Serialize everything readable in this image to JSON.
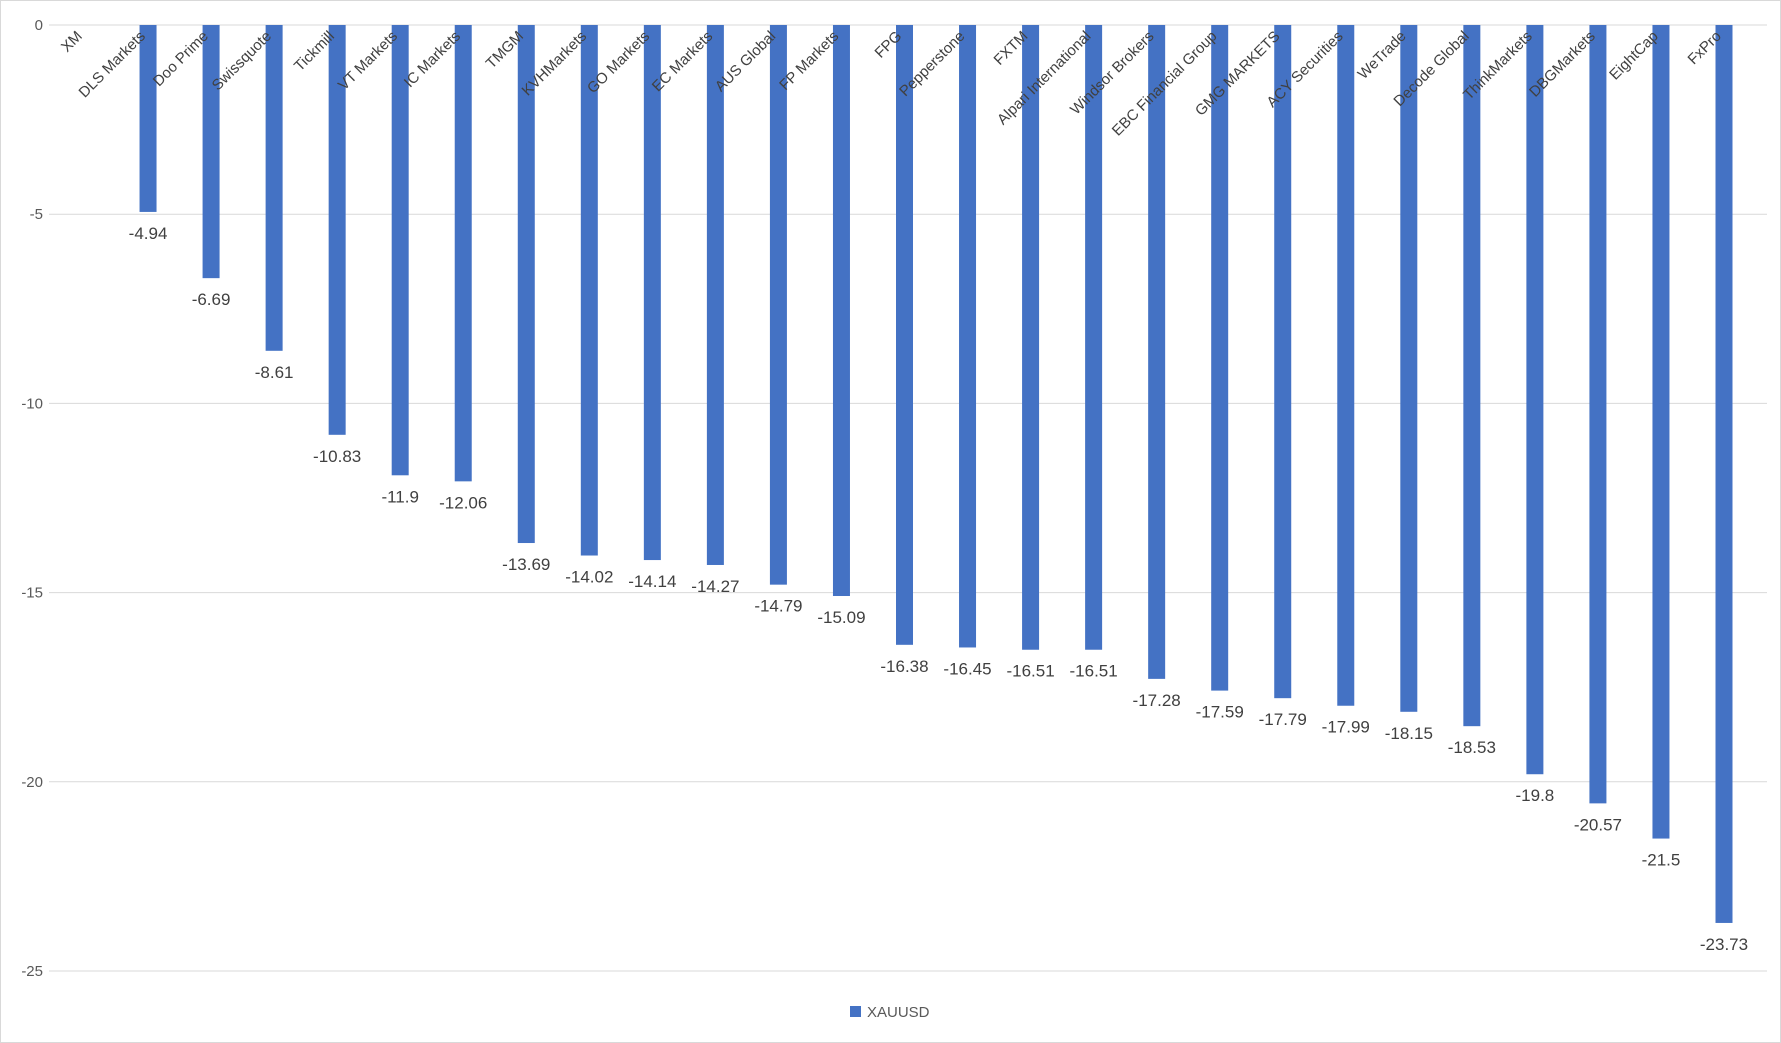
{
  "chart_data": {
    "type": "bar",
    "categories": [
      "XM",
      "DLS Markets",
      "Doo Prime",
      "Swissquote",
      "Tickmill",
      "VT Markets",
      "IC Markets",
      "TMGM",
      "KVHMarkets",
      "GO Markets",
      "EC Markets",
      "AUS Global",
      "FP Markets",
      "FPG",
      "Pepperstone",
      "FXTM",
      "Alpari International",
      "Windsor Brokers",
      "EBC Financial Group",
      "GMG MARKETS",
      "ACY Securities",
      "WeTrade",
      "Decode Global",
      "ThinkMarkets",
      "DBGMarkets",
      "EightCap",
      "FxPro"
    ],
    "series": [
      {
        "name": "XAUUSD",
        "color": "#4472c4",
        "values": [
          0,
          -4.94,
          -6.69,
          -8.61,
          -10.83,
          -11.9,
          -12.06,
          -13.69,
          -14.02,
          -14.14,
          -14.27,
          -14.79,
          -15.09,
          -16.38,
          -16.45,
          -16.51,
          -16.51,
          -17.28,
          -17.59,
          -17.79,
          -17.99,
          -18.15,
          -18.53,
          -19.8,
          -20.57,
          -21.5,
          -23.73
        ],
        "labels": [
          "",
          "-4.94",
          "-6.69",
          "-8.61",
          "-10.83",
          "-11.9",
          "-12.06",
          "-13.69",
          "-14.02",
          "-14.14",
          "-14.27",
          "-14.79",
          "-15.09",
          "-16.38",
          "-16.45",
          "-16.51",
          "-16.51",
          "-17.28",
          "-17.59",
          "-17.79",
          "-17.99",
          "-18.15",
          "-18.53",
          "-19.8",
          "-20.57",
          "-21.5",
          "-23.73"
        ]
      }
    ],
    "ylim": [
      -25,
      0
    ],
    "yticks": [
      0,
      -5,
      -10,
      -15,
      -20,
      -25
    ],
    "ytick_labels": [
      "0",
      "-5",
      "-10",
      "-15",
      "-20",
      "-25"
    ],
    "grid": true,
    "gridline_color": "#d9d9d9",
    "legend_position": "bottom",
    "category_label_position": "top, rotated"
  }
}
